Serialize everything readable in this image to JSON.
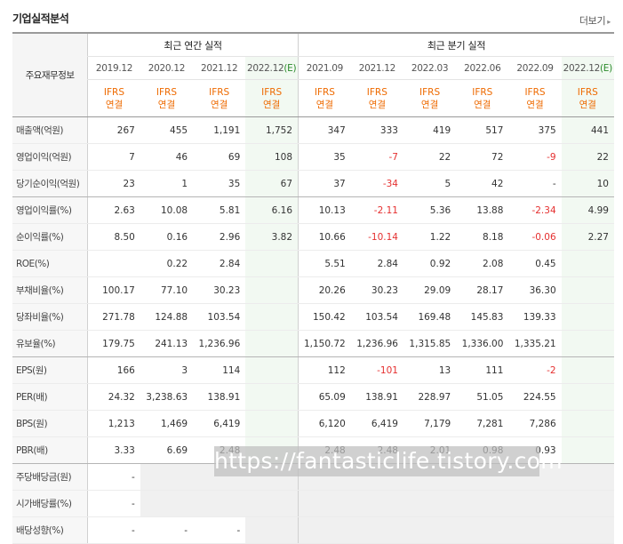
{
  "header": {
    "title": "기업실적분석",
    "more": "더보기"
  },
  "table": {
    "corner_label": "주요재무정보",
    "group_annual": "최근 연간 실적",
    "group_quarter": "최근 분기 실적",
    "periods": [
      "2019.12",
      "2020.12",
      "2021.12",
      "2022.12(E)",
      "2021.09",
      "2021.12",
      "2022.03",
      "2022.06",
      "2022.09",
      "2022.12(E)"
    ],
    "ifrs_top": "IFRS",
    "ifrs_bottom": "연결",
    "rows": [
      {
        "label": "매출액(억원)",
        "values": [
          "267",
          "455",
          "1,191",
          "1,752",
          "347",
          "333",
          "419",
          "517",
          "375",
          "441"
        ]
      },
      {
        "label": "영업이익(억원)",
        "values": [
          "7",
          "46",
          "69",
          "108",
          "35",
          "-7",
          "22",
          "72",
          "-9",
          "22"
        ]
      },
      {
        "label": "당기순이익(억원)",
        "values": [
          "23",
          "1",
          "35",
          "67",
          "37",
          "-34",
          "5",
          "42",
          "-",
          "10"
        ]
      },
      {
        "label": "영업이익률(%)",
        "values": [
          "2.63",
          "10.08",
          "5.81",
          "6.16",
          "10.13",
          "-2.11",
          "5.36",
          "13.88",
          "-2.34",
          "4.99"
        ]
      },
      {
        "label": "순이익률(%)",
        "values": [
          "8.50",
          "0.16",
          "2.96",
          "3.82",
          "10.66",
          "-10.14",
          "1.22",
          "8.18",
          "-0.06",
          "2.27"
        ]
      },
      {
        "label": "ROE(%)",
        "values": [
          "",
          "0.22",
          "2.84",
          "",
          "5.51",
          "2.84",
          "0.92",
          "2.08",
          "0.45",
          ""
        ]
      },
      {
        "label": "부채비율(%)",
        "values": [
          "100.17",
          "77.10",
          "30.23",
          "",
          "20.26",
          "30.23",
          "29.09",
          "28.17",
          "36.30",
          ""
        ]
      },
      {
        "label": "당좌비율(%)",
        "values": [
          "271.78",
          "124.88",
          "103.54",
          "",
          "150.42",
          "103.54",
          "169.48",
          "145.83",
          "139.33",
          ""
        ]
      },
      {
        "label": "유보율(%)",
        "values": [
          "179.75",
          "241.13",
          "1,236.96",
          "",
          "1,150.72",
          "1,236.96",
          "1,315.85",
          "1,336.00",
          "1,335.21",
          ""
        ]
      },
      {
        "label": "EPS(원)",
        "values": [
          "166",
          "3",
          "114",
          "",
          "112",
          "-101",
          "13",
          "111",
          "-2",
          ""
        ]
      },
      {
        "label": "PER(배)",
        "values": [
          "24.32",
          "3,238.63",
          "138.91",
          "",
          "65.09",
          "138.91",
          "228.97",
          "51.05",
          "224.55",
          ""
        ]
      },
      {
        "label": "BPS(원)",
        "values": [
          "1,213",
          "1,469",
          "6,419",
          "",
          "6,120",
          "6,419",
          "7,179",
          "7,281",
          "7,286",
          ""
        ]
      },
      {
        "label": "PBR(배)",
        "values": [
          "3.33",
          "6.69",
          "2.48",
          "",
          "2.48",
          "2.48",
          "2.01",
          "0.98",
          "0.93",
          ""
        ]
      },
      {
        "label": "주당배당금(원)",
        "values": [
          "-",
          "",
          "",
          "",
          "",
          "",
          "",
          "",
          "",
          ""
        ]
      },
      {
        "label": "시가배당률(%)",
        "values": [
          "-",
          "",
          "",
          "",
          "",
          "",
          "",
          "",
          "",
          ""
        ]
      },
      {
        "label": "배당성향(%)",
        "values": [
          "-",
          "-",
          "-",
          "",
          "",
          "",
          "",
          "",
          "",
          ""
        ]
      }
    ]
  },
  "watermark": "https://fantasticlife.tistory.com",
  "colors": {
    "ifrs": "#ee6a00",
    "negative": "#e53030",
    "estimate": "#2a8a2a",
    "estimate_bg": "#f2f9f2"
  }
}
